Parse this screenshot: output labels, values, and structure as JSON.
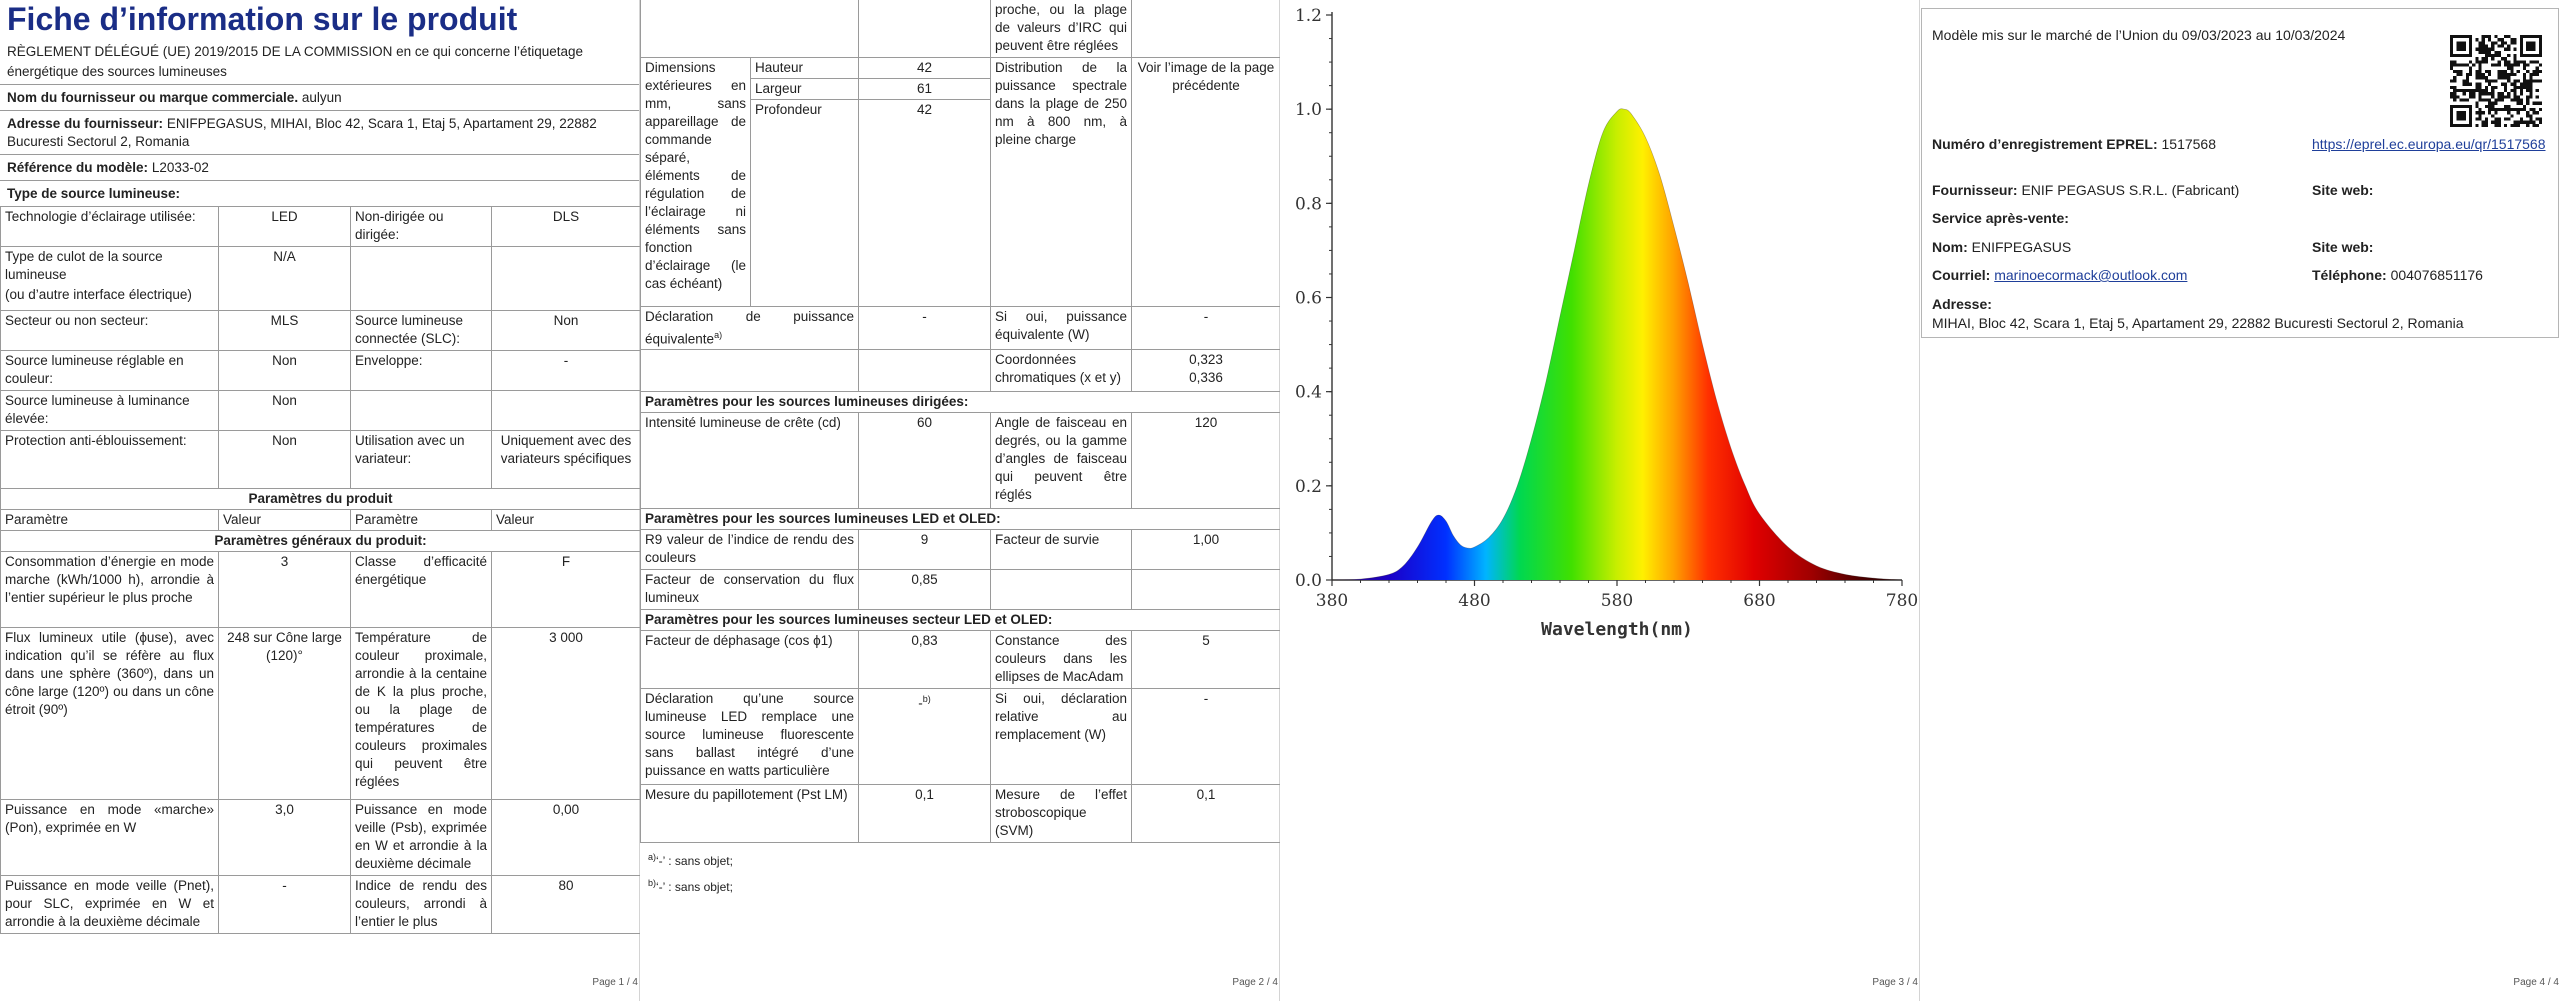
{
  "page1": {
    "title": "Fiche d’information sur le produit",
    "regulation": "RÈGLEMENT DÉLÉGUÉ (UE) 2019/2015 DE LA COMMISSION en ce qui concerne l’étiquetage énergétique des sources lumineuses",
    "supplier_name_label": "Nom du fournisseur ou marque commerciale.",
    "supplier_name_value": "aulyun",
    "supplier_address_label": "Adresse du fournisseur:",
    "supplier_address_value": "ENIFPEGASUS, MIHAI, Bloc 42, Scara 1, Etaj 5, Apartament 29, 22882 Bucuresti Sectorul 2, Romania",
    "model_ref_label": "Référence du modèle:",
    "model_ref_value": "L2033-02",
    "source_type_label": "Type de source lumineuse:",
    "type_rows": [
      {
        "l1": "Technologie d’éclairage utilisée:",
        "v1": "LED",
        "l2": "Non-dirigée ou dirigée:",
        "v2": "DLS"
      },
      {
        "l1": "Type de culot de la source lumineuse",
        "l1b": "(ou d’autre interface électrique)",
        "v1": "N/A",
        "l2": "",
        "v2": ""
      },
      {
        "l1": "Secteur ou non secteur:",
        "v1": "MLS",
        "l2": "Source lumineuse connectée (SLC):",
        "v2": "Non"
      },
      {
        "l1": "Source lumineuse réglable en couleur:",
        "v1": "Non",
        "l2": "Enveloppe:",
        "v2": "-"
      },
      {
        "l1": "Source lumineuse à luminance élevée:",
        "v1": "Non",
        "l2": "",
        "v2": ""
      },
      {
        "l1": "Protection anti-éblouissement:",
        "v1": "Non",
        "l2": "Utilisation avec un variateur:",
        "v2": "Uniquement avec des variateurs spécifiques"
      }
    ],
    "params_title": "Paramètres du produit",
    "col_param": "Paramètre",
    "col_value": "Valeur",
    "general_params_title": "Paramètres généraux du produit:",
    "gen_rows": [
      {
        "l1": "Consommation d’énergie en mode marche (kWh/1000 h), arrondie à l’entier supérieur le plus proche",
        "v1": "3",
        "l2": "Classe d’efficacité énergétique",
        "v2": "F"
      },
      {
        "l1": "Flux lumineux utile (ϕuse), avec indication qu’il se réfère au flux dans une sphère (360º), dans un cône large (120º) ou dans un cône étroit (90º)",
        "v1": "248 sur Cône large (120)°",
        "l2": "Température de couleur proximale, arrondie à la centaine de K la plus proche, ou la plage de températures de couleurs proximales qui peuvent être réglées",
        "v2": "3 000"
      },
      {
        "l1": "Puissance en mode «marche» (Pon), exprimée en W",
        "v1": "3,0",
        "l2": "Puissance en mode veille (Psb), exprimée en W et arrondie à la deuxième décimale",
        "v2": "0,00"
      },
      {
        "l1": "Puissance en mode veille (Pnet), pour SLC, exprimée en W et arrondie à la deuxième décimale",
        "v1": "-",
        "l2": "Indice de rendu des couleurs, arrondi à l’entier le plus",
        "v2": "80"
      }
    ],
    "page_label": "Page 1 / 4"
  },
  "page2": {
    "top_text": "proche, ou la plage de valeurs d’IRC qui peuvent être réglées",
    "dim_label": "Dimensions extérieures en mm, sans appareillage de commande séparé, éléments de régulation de l’éclairage ni éléments sans fonction d’éclairage (le cas échéant)",
    "dim_height_label": "Hauteur",
    "dim_height_value": "42",
    "dim_width_label": "Largeur",
    "dim_width_value": "61",
    "dim_depth_label": "Profondeur",
    "dim_depth_value": "42",
    "spectral_label": "Distribution de la puissance spectrale dans la plage de 250 nm à 800 nm, à pleine charge",
    "spectral_value": "Voir l’image de la page précédente",
    "equiv_label": "Déclaration de puissance équivalente",
    "equiv_sup": "a)",
    "equiv_value": "-",
    "equiv2_label": "Si oui, puissance équivalente (W)",
    "equiv2_value": "-",
    "chroma_label": "Coordonnées chromatiques (x et y)",
    "chroma_x": "0,323",
    "chroma_y": "0,336",
    "directed_title": "Paramètres pour les sources lumineuses dirigées:",
    "peak_label": "Intensité lumineuse de crête (cd)",
    "peak_value": "60",
    "beam_label": "Angle de faisceau en degrés, ou la gamme d’angles de faisceau qui peuvent être réglés",
    "beam_value": "120",
    "led_title": "Paramètres pour les sources lumineuses LED et OLED:",
    "r9_label": "R9 valeur de l’indice de rendu des couleurs",
    "r9_value": "9",
    "survival_label": "Facteur de survie",
    "survival_value": "1,00",
    "maint_label": "Facteur de conservation du flux lumineux",
    "maint_value": "0,85",
    "mains_title": "Paramètres pour les sources lumineuses secteur LED et OLED:",
    "pf_label": "Facteur de déphasage (cos ϕ1)",
    "pf_value": "0,83",
    "macadam_label": "Constance des couleurs dans les ellipses de MacAdam",
    "macadam_value": "5",
    "replace_label": "Déclaration qu’une source lumineuse LED remplace une source lumineuse fluorescente sans ballast intégré d’une puissance en watts particulière",
    "replace_value": "-",
    "replace_sup": "b)",
    "replace2_label": "Si oui, déclaration relative au remplacement (W)",
    "replace2_value": "-",
    "flicker_label": "Mesure du papillotement (Pst LM)",
    "flicker_value": "0,1",
    "strobo_label": "Mesure de l’effet stroboscopique (SVM)",
    "strobo_value": "0,1",
    "footnote_a_mark": "a)",
    "footnote_a": "‘-’ : sans objet;",
    "footnote_b_mark": "b)",
    "footnote_b": "‘-’ : sans objet;",
    "page_label": "Page 2 / 4"
  },
  "page3": {
    "xlabel": "Wavelength(nm)",
    "page_label": "Page 3 / 4",
    "chart_data": {
      "type": "line",
      "xlabel": "Wavelength(nm)",
      "ylabel": "",
      "xlim": [
        380,
        780
      ],
      "ylim": [
        0,
        1.2
      ],
      "xticks": [
        380,
        480,
        580,
        680,
        780
      ],
      "yticks": [
        0.0,
        0.2,
        0.4,
        0.6,
        0.8,
        1.0,
        1.2
      ],
      "ytick_labels": [
        "0.0",
        "0.2",
        "0.4",
        "0.6",
        "0.8",
        "1.0",
        "1.2"
      ],
      "series": [
        {
          "x": [
            380,
            400,
            420,
            430,
            440,
            450,
            455,
            460,
            465,
            470,
            475,
            480,
            490,
            500,
            510,
            520,
            530,
            540,
            550,
            560,
            570,
            580,
            585,
            590,
            600,
            610,
            620,
            630,
            640,
            650,
            660,
            670,
            680,
            700,
            720,
            740,
            760,
            780
          ],
          "y": [
            0.0,
            0.002,
            0.012,
            0.03,
            0.07,
            0.125,
            0.138,
            0.125,
            0.095,
            0.075,
            0.068,
            0.07,
            0.09,
            0.13,
            0.2,
            0.3,
            0.42,
            0.56,
            0.7,
            0.84,
            0.95,
            0.995,
            1.0,
            0.99,
            0.94,
            0.86,
            0.75,
            0.63,
            0.5,
            0.38,
            0.28,
            0.2,
            0.14,
            0.07,
            0.03,
            0.012,
            0.004,
            0.0
          ]
        }
      ]
    }
  },
  "page4": {
    "market_text": "Modèle mis sur le marché de l’Union du 09/03/2023 au 10/03/2024",
    "eprel_label": "Numéro d’enregistrement EPREL:",
    "eprel_value": "1517568",
    "eprel_link": "https://eprel.ec.europa.eu/qr/1517568",
    "supplier_label": "Fournisseur:",
    "supplier_value": "ENIF PEGASUS S.R.L. (Fabricant)",
    "website_label": "Site web:",
    "service_label": "Service après-vente:",
    "name_label": "Nom:",
    "name_value": "ENIFPEGASUS",
    "website2_label": "Site web:",
    "email_label": "Courriel:",
    "email_value": "marinoecormack@outlook.com",
    "phone_label": "Téléphone:",
    "phone_value": "004076851176",
    "address_label": "Adresse:",
    "address_value": "MIHAI, Bloc 42, Scara 1, Etaj 5, Apartament 29, 22882 Bucuresti Sectorul 2, Romania",
    "page_label": "Page 4 / 4"
  }
}
